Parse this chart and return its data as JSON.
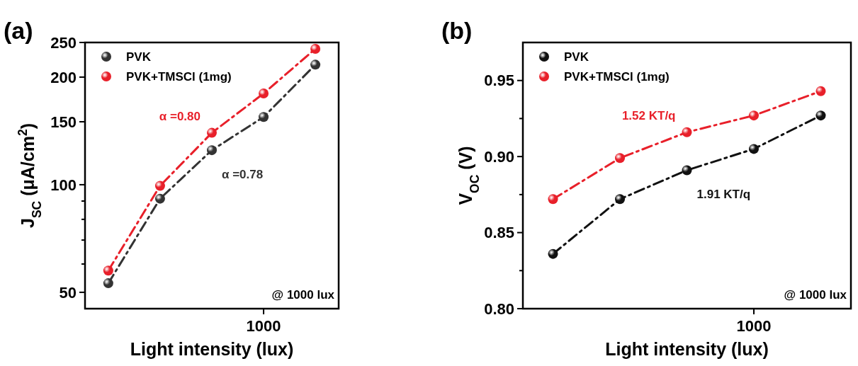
{
  "chart_data": [
    {
      "type": "line",
      "title": "(a)",
      "xlabel": "Light intensity (lux)",
      "ylabel": "J$_{SC}$ (μA/cm$^{2}$)",
      "log": "y",
      "categories": [
        null,
        null,
        null,
        "1000",
        null
      ],
      "series": [
        {
          "name": "PVK",
          "color": "#333333",
          "values": [
            53,
            91.4,
            124.9,
            154.7,
            216.7
          ]
        },
        {
          "name": "PVK+TMSCl (1mg)",
          "color": "#e8202a",
          "values": [
            57.5,
            99.3,
            139.7,
            180,
            240
          ]
        }
      ],
      "ylim": [
        45,
        250
      ],
      "yticks": [
        {
          "value": 50,
          "label": "50"
        },
        {
          "value": 60,
          "label": null
        },
        {
          "value": 70,
          "label": null
        },
        {
          "value": 80,
          "label": null
        },
        {
          "value": 90,
          "label": null
        },
        {
          "value": 100,
          "label": "100"
        },
        {
          "value": 150,
          "label": "150"
        },
        {
          "value": 200,
          "label": "200"
        },
        {
          "value": 250,
          "label": "250"
        }
      ],
      "marker": "circle",
      "line_style": "dashed",
      "legend": "top left",
      "grid": false,
      "annotations": [
        "α =0.80",
        "α =0.78",
        "@ 1000 lux"
      ]
    },
    {
      "type": "line",
      "title": "(b)",
      "xlabel": "Light intensity (lux)",
      "ylabel": "V$_{OC}$ (V)",
      "categories": [
        null,
        null,
        null,
        "1000",
        null
      ],
      "series": [
        {
          "name": "PVK",
          "color": "#111111",
          "values": [
            0.836,
            0.872,
            0.891,
            0.905,
            0.927
          ]
        },
        {
          "name": "PVK+TMSCl (1mg)",
          "color": "#e8202a",
          "values": [
            0.872,
            0.899,
            0.916,
            0.927,
            0.943
          ]
        }
      ],
      "ylim": [
        0.8,
        0.975
      ],
      "yticks": [
        {
          "value": 0.8,
          "label": "0.80"
        },
        {
          "value": 0.825,
          "label": null
        },
        {
          "value": 0.85,
          "label": "0.85"
        },
        {
          "value": 0.875,
          "label": null
        },
        {
          "value": 0.9,
          "label": "0.90"
        },
        {
          "value": 0.925,
          "label": null
        },
        {
          "value": 0.95,
          "label": "0.95"
        }
      ],
      "marker": "circle",
      "line_style": "dashed",
      "legend": "top left",
      "grid": false,
      "annotations": [
        "1.52 KT/q",
        "1.91 KT/q",
        "@ 1000 lux"
      ]
    }
  ]
}
